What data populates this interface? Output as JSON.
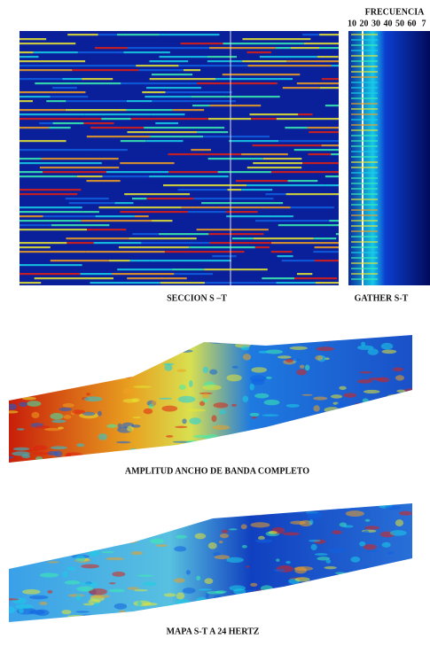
{
  "section": {
    "label": "SECCION S –T"
  },
  "gather": {
    "title": "FRECUENCIA",
    "ticks": [
      "10",
      "20",
      "30",
      "40",
      "50",
      "60",
      "7"
    ],
    "label": "GATHER S-T"
  },
  "maps": [
    {
      "label": "AMPLITUD  ANCHO DE BANDA COMPLETO"
    },
    {
      "label": "MAPA S-T A 24 HERTZ"
    }
  ]
}
